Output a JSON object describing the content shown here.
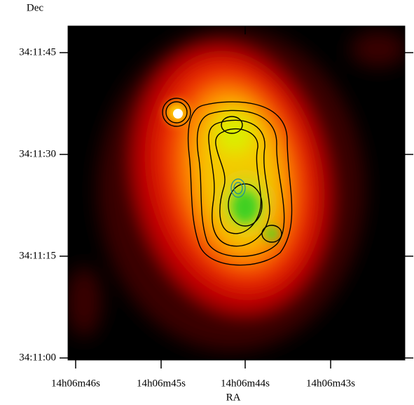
{
  "axes": {
    "x_label": "RA",
    "y_label": "Dec",
    "x_ticks": [
      "14h06m46s",
      "14h06m45s",
      "14h06m44s",
      "14h06m43s"
    ],
    "y_ticks": [
      "34:11:45",
      "34:11:30",
      "34:11:15",
      "34:11:00"
    ]
  }
}
